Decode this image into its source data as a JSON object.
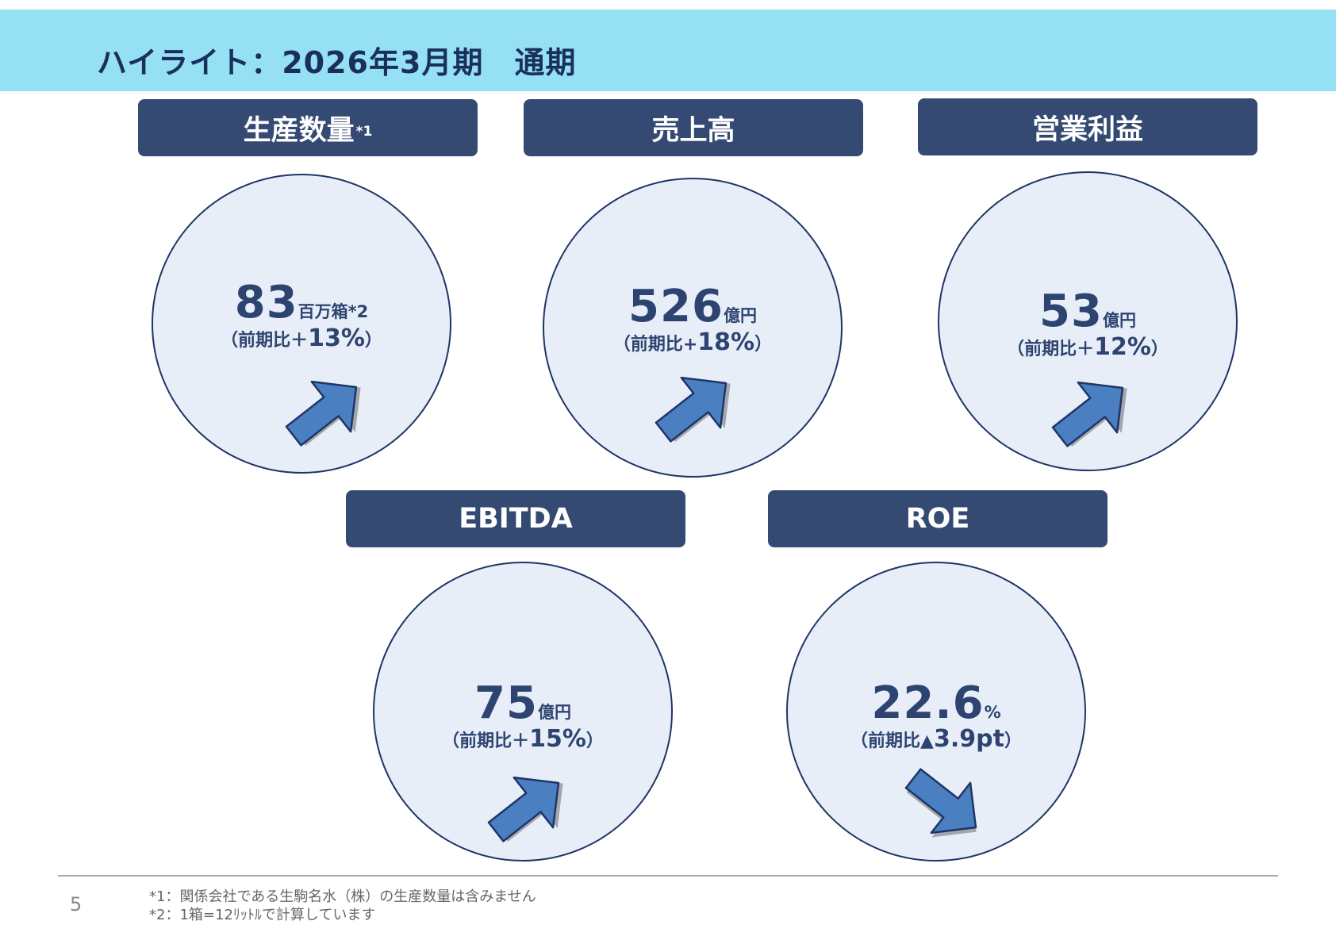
{
  "title": "ハイライト：2026年3月期　通期",
  "kpis": [
    {
      "header": "生産数量",
      "header_note": "*1",
      "value": "83",
      "unit": "百万箱*2",
      "change_prefix": "（前期比＋",
      "change_value": "13%",
      "change_suffix": "）",
      "trend": "up"
    },
    {
      "header": "売上高",
      "header_note": "",
      "value": "526",
      "unit": "億円",
      "change_prefix": "（前期比+",
      "change_value": "18%",
      "change_suffix": "）",
      "trend": "up"
    },
    {
      "header": "営業利益",
      "header_note": "",
      "value": "53",
      "unit": "億円",
      "change_prefix": "（前期比＋",
      "change_value": "12%",
      "change_suffix": "）",
      "trend": "up"
    },
    {
      "header": "EBITDA",
      "header_note": "",
      "value": "75",
      "unit": "億円",
      "change_prefix": "（前期比＋",
      "change_value": "15%",
      "change_suffix": "）",
      "trend": "up"
    },
    {
      "header": "ROE",
      "header_note": "",
      "value": "22.6",
      "unit": "%",
      "change_prefix": "（前期比▲",
      "change_value": "3.9pt",
      "change_suffix": "）",
      "trend": "down"
    }
  ],
  "colors": {
    "band": "#96E0F4",
    "header_bg": "#344A72",
    "circle_fill": "#E8EEF8",
    "arrow": "#4A7FC1",
    "text": "#2E4470"
  },
  "footer": {
    "page_number": "5",
    "notes": [
      "*1：関係会社である生駒名水（株）の生産数量は含みません",
      "*2：1箱=12ﾘｯﾄﾙで計算しています"
    ]
  }
}
